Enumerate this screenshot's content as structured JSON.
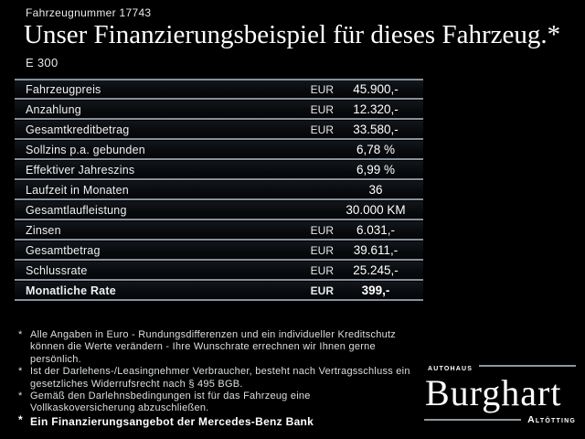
{
  "header": {
    "vehicle_number": "Fahrzeugnummer 17743",
    "title": "Unser Finanzierungsbeispiel für dieses Fahrzeug.*",
    "model": "E 300"
  },
  "table": {
    "rows": [
      {
        "label": "Fahrzeugpreis",
        "currency": "EUR",
        "value": "45.900,-",
        "bold": false
      },
      {
        "label": "Anzahlung",
        "currency": "EUR",
        "value": "12.320,-",
        "bold": false
      },
      {
        "label": "Gesamtkreditbetrag",
        "currency": "EUR",
        "value": "33.580,-",
        "bold": false
      },
      {
        "label": "Sollzins p.a. gebunden",
        "currency": "",
        "value": "6,78 %",
        "bold": false
      },
      {
        "label": "Effektiver Jahreszins",
        "currency": "",
        "value": "6,99 %",
        "bold": false
      },
      {
        "label": "Laufzeit in Monaten",
        "currency": "",
        "value": "36",
        "bold": false
      },
      {
        "label": "Gesamtlaufleistung",
        "currency": "",
        "value": "30.000 KM",
        "bold": false
      },
      {
        "label": "Zinsen",
        "currency": "EUR",
        "value": "6.031,-",
        "bold": false
      },
      {
        "label": "Gesamtbetrag",
        "currency": "EUR",
        "value": "39.611,-",
        "bold": false
      },
      {
        "label": "Schlussrate",
        "currency": "EUR",
        "value": "25.245,-",
        "bold": false
      },
      {
        "label": "Monatliche Rate",
        "currency": "EUR",
        "value": "399,-",
        "bold": true
      }
    ]
  },
  "footnotes": [
    {
      "marker": "*",
      "lines": [
        "Alle Angaben in Euro - Rundungsdifferenzen und ein individueller Kreditschutz",
        "können die Werte verändern - Ihre Wunschrate errechnen wir Ihnen gerne persönlich."
      ]
    },
    {
      "marker": "*",
      "lines": [
        "Ist der Darlehens-/Leasingnehmer Verbraucher, besteht nach Vertragsschluss ein",
        "gesetzliches Widerrufsrecht nach § 495 BGB."
      ]
    },
    {
      "marker": "*",
      "lines": [
        "Gemäß den Darlehnsbedingungen ist für das Fahrzeug eine",
        "Vollkaskoversicherung abzuschließen."
      ]
    }
  ],
  "financing_note": {
    "marker": "*",
    "text": "Ein Finanzierungsangebot der Mercedes-Benz Bank"
  },
  "dealer_logo": {
    "pretitle": "Autohaus",
    "name": "Burghart",
    "subtitle": "Altötting"
  },
  "colors": {
    "background": "#000000",
    "text": "#ffffff",
    "separator": "#87919c",
    "row_background_top": "#12161b",
    "row_background_bottom": "#040609"
  }
}
